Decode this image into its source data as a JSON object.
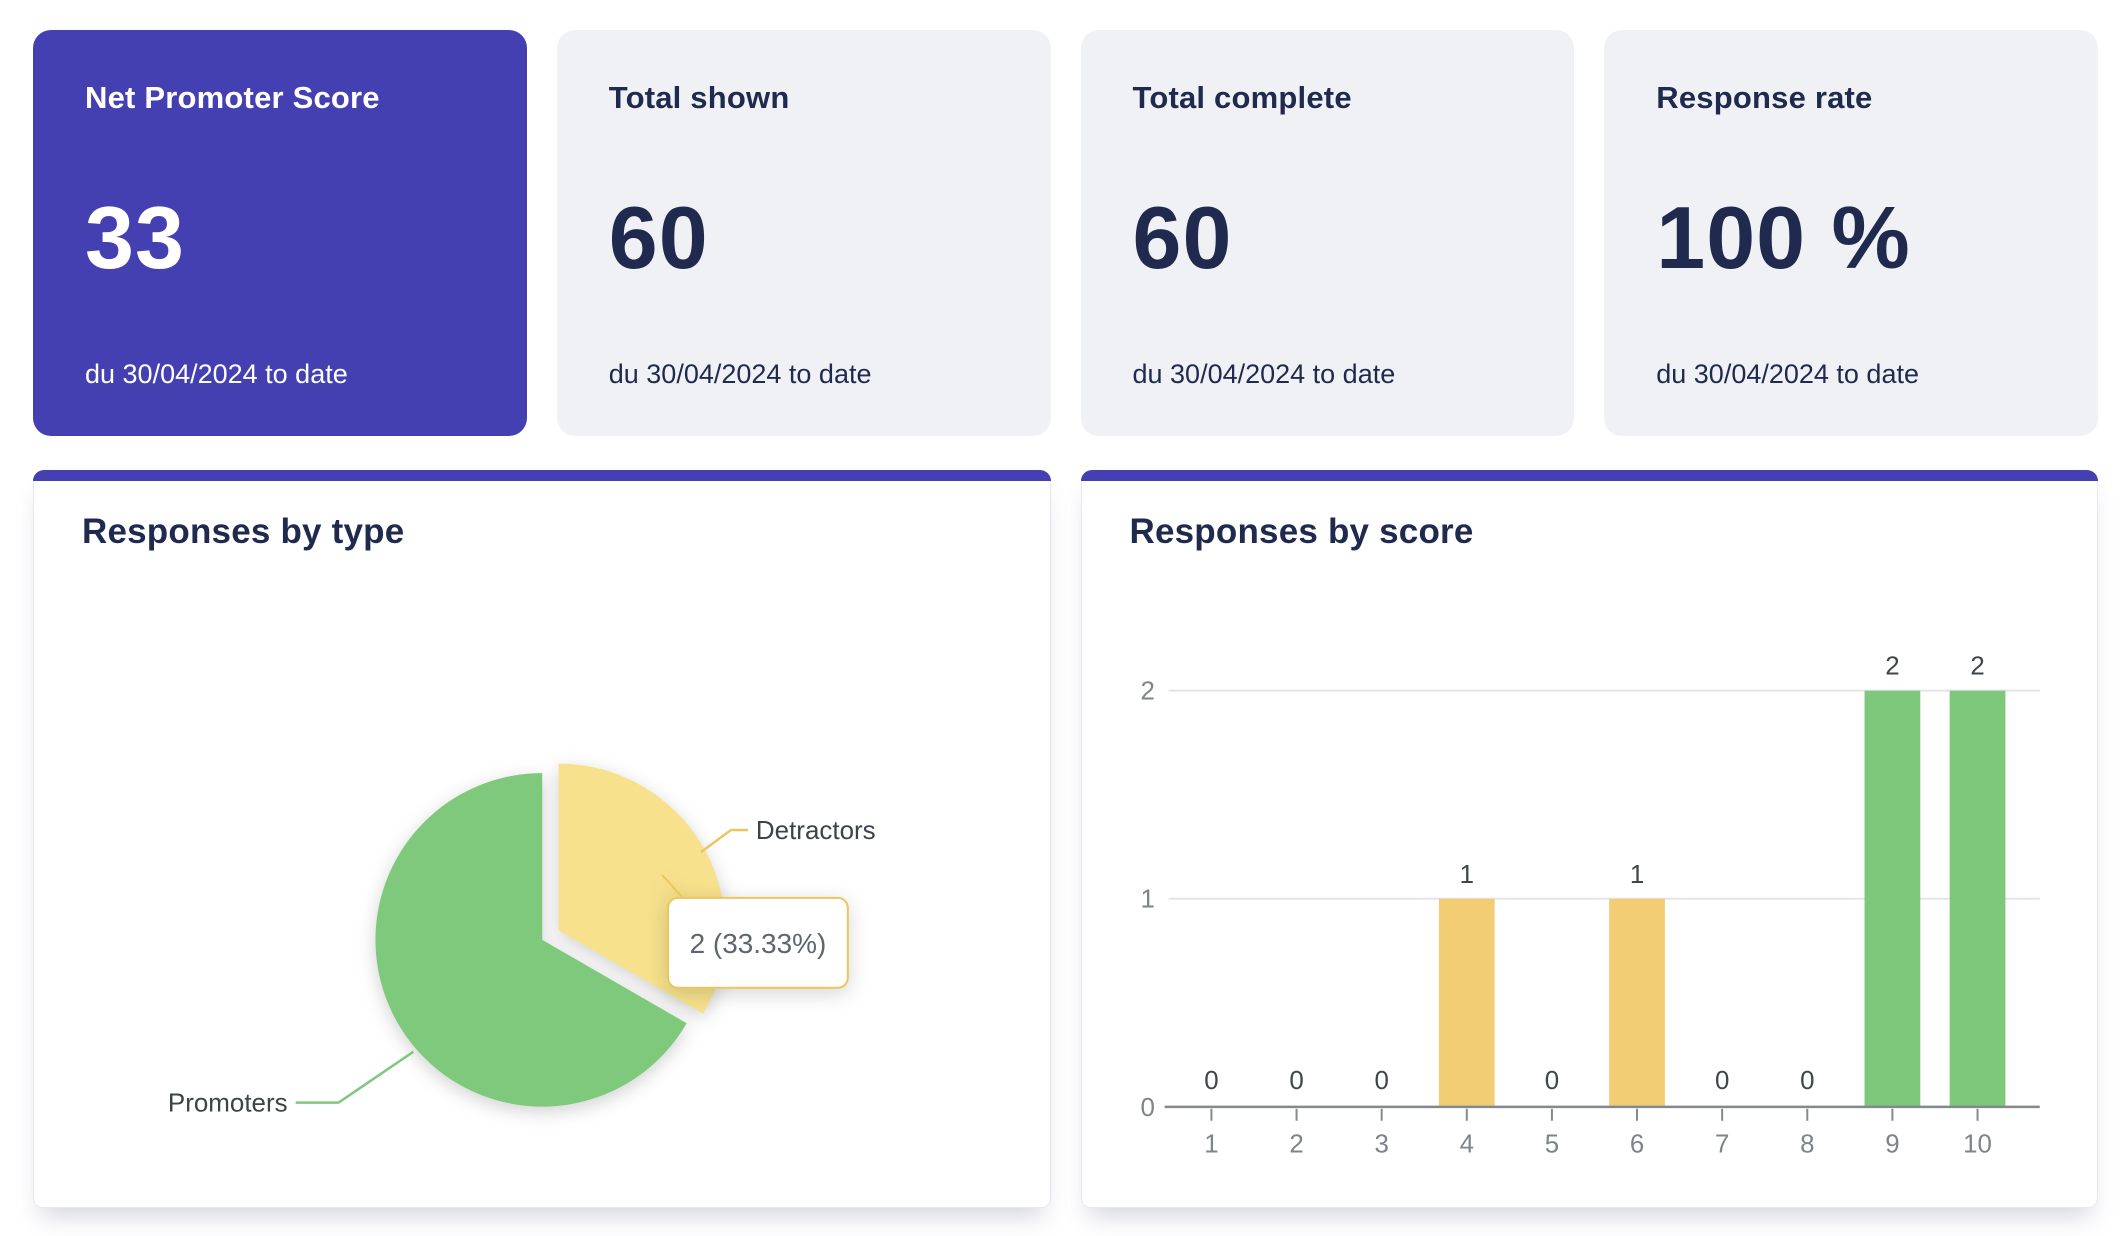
{
  "kpi_cards": [
    {
      "title": "Net Promoter Score",
      "value": "33",
      "period": "du 30/04/2024 to date",
      "variant": "primary"
    },
    {
      "title": "Total shown",
      "value": "60",
      "period": "du 30/04/2024 to date",
      "variant": "default"
    },
    {
      "title": "Total complete",
      "value": "60",
      "period": "du 30/04/2024 to date",
      "variant": "default"
    },
    {
      "title": "Response rate",
      "value": "100 %",
      "period": "du 30/04/2024 to date",
      "variant": "default"
    }
  ],
  "colors": {
    "primary_indigo": "#4540B2",
    "navy_text": "#1F2A4E",
    "card_gray": "#EFF1F4",
    "pie_green": "#7EC97B",
    "pie_yellow": "#F7E18C",
    "bar_yellow": "#F2CD74",
    "bar_green": "#7DC87B",
    "axis_gray": "#84888F",
    "tick_label_gray": "#7E838C",
    "gridline": "#E2E4EE",
    "data_label": "#3F454D",
    "tooltip_border": "#E9C75D",
    "tooltip_text": "#5F656E"
  },
  "chart_data": [
    {
      "type": "pie",
      "title": "Responses by type",
      "slices": [
        {
          "label": "Detractors",
          "value": 2,
          "pct": 33.33,
          "color": "#F7E18C",
          "exploded": true
        },
        {
          "label": "Promoters",
          "value": 4,
          "pct": 66.67,
          "color": "#7EC97B",
          "exploded": false
        }
      ],
      "start_angle_deg": 0,
      "direction": "clockwise",
      "tooltip": "2 (33.33%)",
      "legend_position": "callout-labels"
    },
    {
      "type": "bar",
      "title": "Responses by score",
      "categories": [
        "1",
        "2",
        "3",
        "4",
        "5",
        "6",
        "7",
        "8",
        "9",
        "10"
      ],
      "values": [
        0,
        0,
        0,
        1,
        0,
        1,
        0,
        0,
        2,
        2
      ],
      "bar_colors": [
        "#F2CD74",
        "#F2CD74",
        "#F2CD74",
        "#F2CD74",
        "#F2CD74",
        "#F2CD74",
        "#F2CD74",
        "#F2CD74",
        "#7DC87B",
        "#7DC87B"
      ],
      "xlabel": "",
      "ylabel": "",
      "ylim": [
        0,
        2
      ],
      "yticks": [
        0,
        1,
        2
      ],
      "grid": true,
      "data_labels": true
    }
  ]
}
